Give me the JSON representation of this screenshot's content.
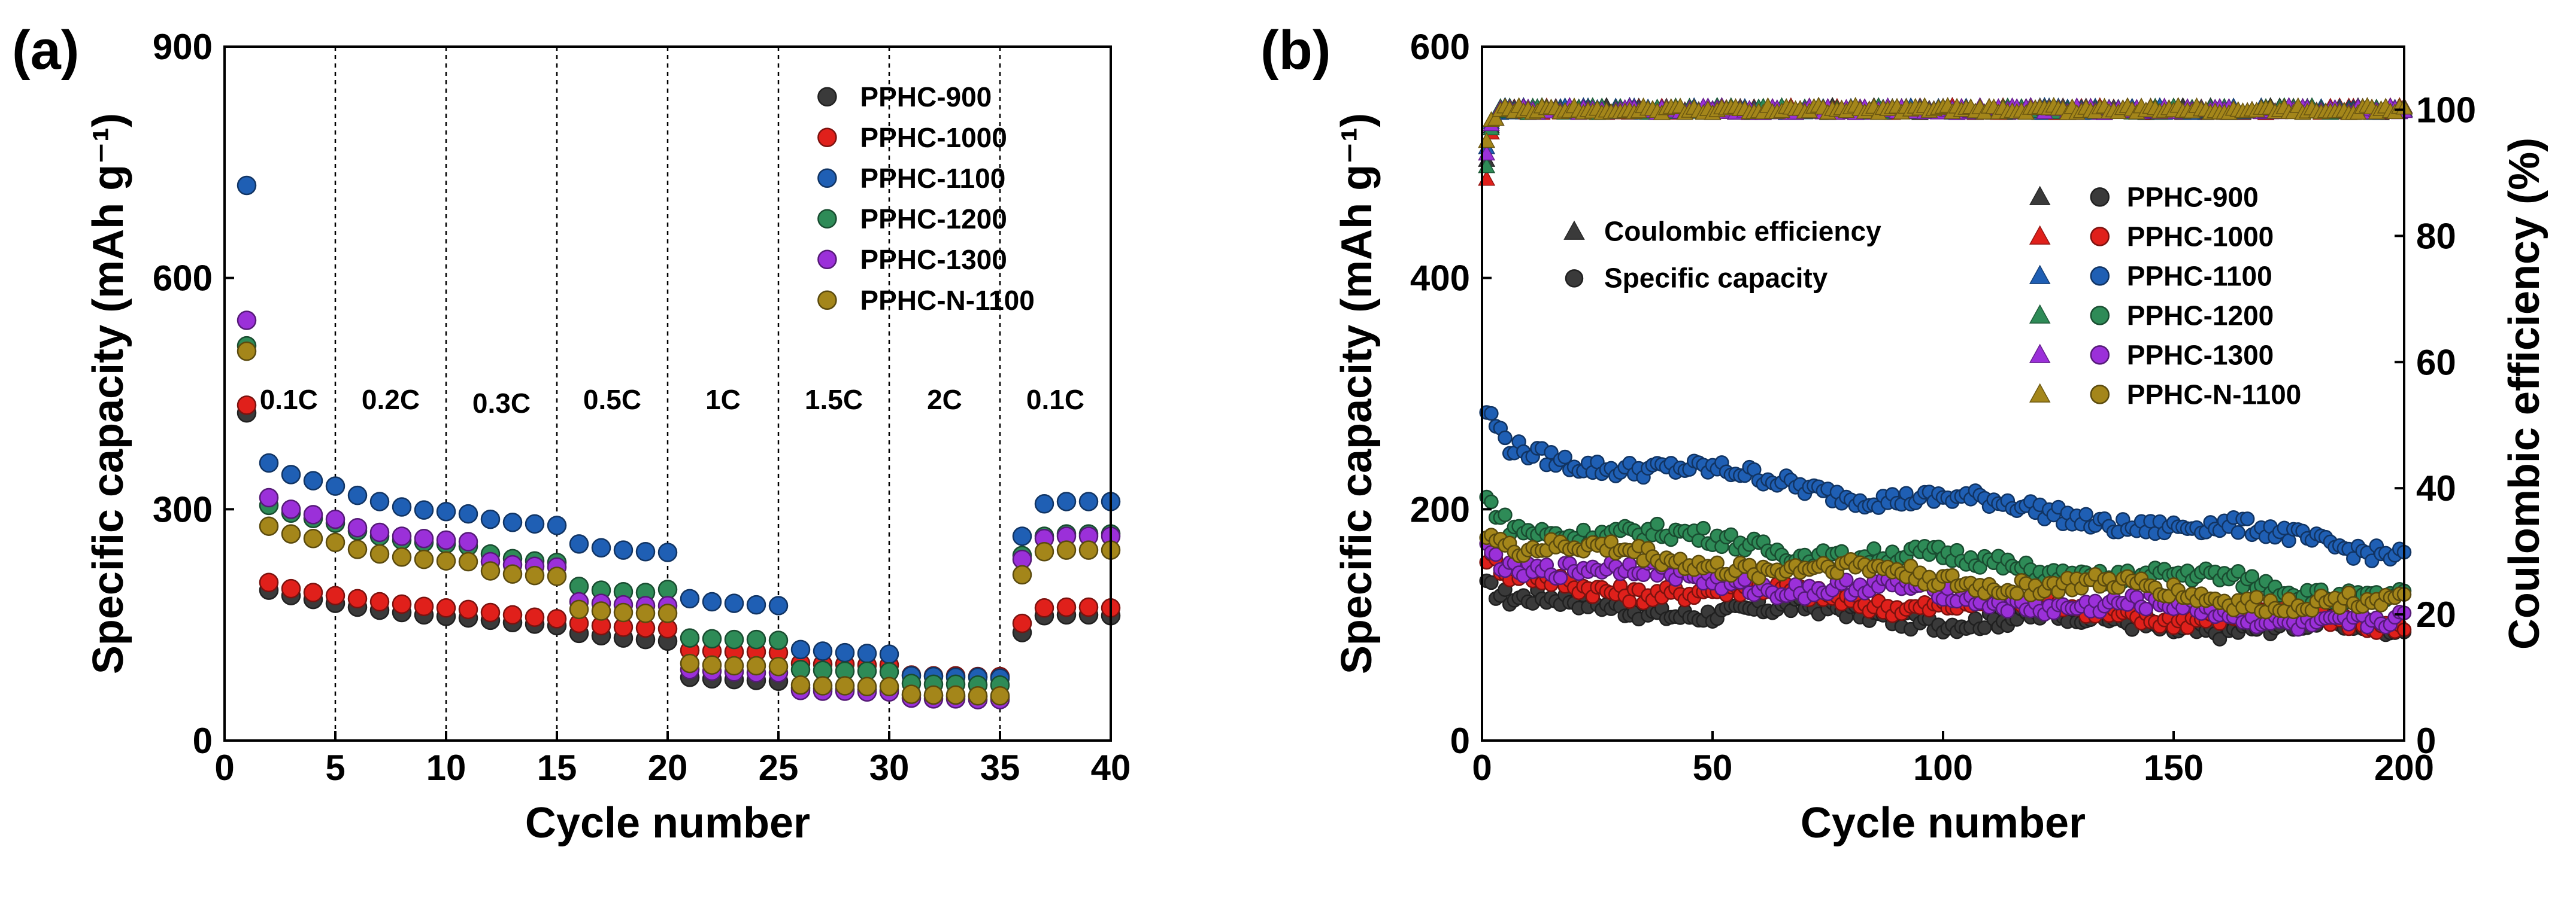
{
  "figure": {
    "panel_a_label": "(a)",
    "panel_b_label": "(b)"
  },
  "colors": {
    "PPHC-900": "#3a3a3a",
    "PPHC-1000": "#e0201b",
    "PPHC-1100": "#1f5fb4",
    "PPHC-1200": "#2e8b57",
    "PPHC-1300": "#9b30d9",
    "PPHC-N-1100": "#a4861a"
  },
  "chart_data": [
    {
      "id": "a",
      "type": "scatter",
      "title": "",
      "xlabel": "Cycle number",
      "ylabel": "Specific capacity (mAh g⁻¹)",
      "xlim": [
        0,
        40
      ],
      "ylim": [
        0,
        900
      ],
      "xticks": [
        0,
        5,
        10,
        15,
        20,
        25,
        30,
        35,
        40
      ],
      "yticks": [
        0,
        300,
        600,
        900
      ],
      "grid": false,
      "legend_position": "top-right",
      "rate_dividers": [
        5,
        10,
        15,
        20,
        25,
        30,
        35
      ],
      "rate_labels": [
        {
          "label": "0.1C",
          "x": 2.9,
          "y": 430
        },
        {
          "label": "0.2C",
          "x": 7.5,
          "y": 430
        },
        {
          "label": "0.3C",
          "x": 12.5,
          "y": 425
        },
        {
          "label": "0.5C",
          "x": 17.5,
          "y": 430
        },
        {
          "label": "1C",
          "x": 22.5,
          "y": 430
        },
        {
          "label": "1.5C",
          "x": 27.5,
          "y": 430
        },
        {
          "label": "2C",
          "x": 32.5,
          "y": 430
        },
        {
          "label": "0.1C",
          "x": 37.5,
          "y": 430
        }
      ],
      "series": [
        {
          "name": "PPHC-900",
          "values": [
            425,
            195,
            188,
            183,
            178,
            173,
            169,
            166,
            163,
            161,
            159,
            156,
            153,
            151,
            149,
            139,
            136,
            133,
            131,
            129,
            82,
            80,
            79,
            78,
            77,
            68,
            67,
            66,
            66,
            65,
            59,
            58,
            57,
            57,
            56,
            140,
            162,
            163,
            163,
            162
          ]
        },
        {
          "name": "PPHC-1000",
          "values": [
            435,
            205,
            197,
            192,
            188,
            184,
            180,
            177,
            174,
            172,
            170,
            166,
            163,
            160,
            158,
            152,
            149,
            147,
            146,
            145,
            117,
            116,
            115,
            115,
            114,
            100,
            99,
            99,
            98,
            98,
            85,
            84,
            84,
            83,
            83,
            152,
            172,
            173,
            173,
            172
          ]
        },
        {
          "name": "PPHC-1100",
          "values": [
            720,
            360,
            345,
            337,
            330,
            318,
            310,
            303,
            299,
            297,
            294,
            287,
            283,
            281,
            279,
            255,
            250,
            247,
            245,
            244,
            184,
            180,
            178,
            176,
            175,
            118,
            116,
            114,
            113,
            112,
            84,
            83,
            82,
            82,
            81,
            265,
            307,
            310,
            310,
            310
          ]
        },
        {
          "name": "PPHC-1200",
          "values": [
            512,
            305,
            295,
            288,
            282,
            272,
            265,
            260,
            257,
            255,
            252,
            242,
            236,
            233,
            231,
            200,
            195,
            193,
            192,
            196,
            133,
            132,
            131,
            131,
            130,
            92,
            91,
            90,
            90,
            89,
            74,
            73,
            73,
            72,
            72,
            240,
            265,
            268,
            268,
            268
          ]
        },
        {
          "name": "PPHC-1300",
          "values": [
            545,
            315,
            300,
            293,
            287,
            276,
            270,
            265,
            262,
            260,
            258,
            232,
            228,
            226,
            225,
            180,
            178,
            176,
            175,
            175,
            92,
            90,
            89,
            88,
            88,
            65,
            64,
            64,
            63,
            63,
            55,
            54,
            54,
            53,
            53,
            235,
            262,
            265,
            265,
            265
          ]
        },
        {
          "name": "PPHC-N-1100",
          "values": [
            505,
            278,
            268,
            262,
            257,
            248,
            242,
            238,
            235,
            233,
            232,
            220,
            216,
            214,
            213,
            170,
            168,
            166,
            165,
            165,
            100,
            98,
            97,
            97,
            96,
            72,
            71,
            71,
            70,
            70,
            60,
            59,
            59,
            58,
            58,
            215,
            245,
            247,
            247,
            247
          ]
        }
      ]
    },
    {
      "id": "b",
      "type": "scatter",
      "title": "",
      "xlabel": "Cycle number",
      "ylabel": "Specific capacity (mAh g⁻¹)",
      "y2label": "Coulombic efficiency (%)",
      "xlim": [
        0,
        200
      ],
      "ylim": [
        0,
        600
      ],
      "y2lim": [
        0,
        110
      ],
      "xticks": [
        0,
        50,
        100,
        150,
        200
      ],
      "yticks": [
        0,
        200,
        400,
        600
      ],
      "y2ticks": [
        0,
        20,
        40,
        60,
        80,
        100
      ],
      "grid": false,
      "legend_position": "center-right",
      "marker_legend": {
        "triangle": "Coulombic efficiency",
        "circle": "Specific capacity"
      },
      "capacity_series": [
        {
          "name": "PPHC-900",
          "start": 120,
          "end": 95
        },
        {
          "name": "PPHC-1000",
          "start": 140,
          "end": 100
        },
        {
          "name": "PPHC-1100",
          "start": 255,
          "end": 165
        },
        {
          "name": "PPHC-1200",
          "start": 190,
          "end": 125
        },
        {
          "name": "PPHC-1300",
          "start": 155,
          "end": 100
        },
        {
          "name": "PPHC-N-1100",
          "start": 170,
          "end": 115
        }
      ],
      "ce_series": [
        {
          "name": "PPHC-900",
          "first": 92,
          "stable": 100
        },
        {
          "name": "PPHC-1000",
          "first": 89,
          "stable": 100
        },
        {
          "name": "PPHC-1100",
          "first": 94,
          "stable": 100
        },
        {
          "name": "PPHC-1200",
          "first": 91,
          "stable": 100
        },
        {
          "name": "PPHC-1300",
          "first": 93,
          "stable": 100
        },
        {
          "name": "PPHC-N-1100",
          "first": 95,
          "stable": 100
        }
      ]
    }
  ]
}
